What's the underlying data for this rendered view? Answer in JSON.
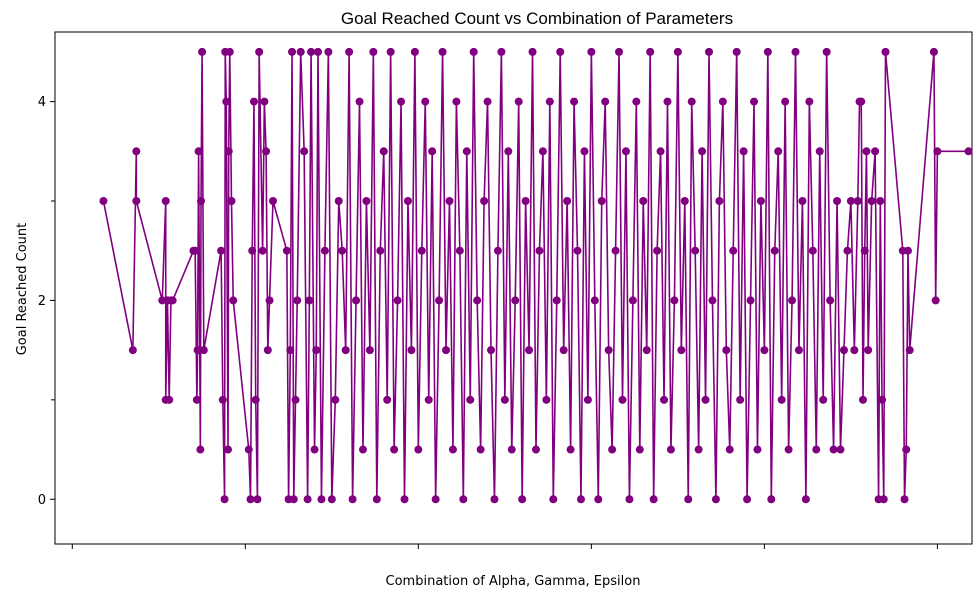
{
  "chart_data": {
    "type": "line",
    "title": "Goal Reached Count vs Combination of Parameters",
    "xlabel": "Combination of Alpha, Gamma, Epsilon",
    "ylabel": "Goal Reached Count",
    "ylim": [
      -0.45,
      4.7
    ],
    "xlim": [
      -0.5,
      26
    ],
    "yticks": [
      0,
      2,
      4
    ],
    "yminor_ticks": [
      1,
      3
    ],
    "xtick_positions": [
      0,
      5,
      10,
      15,
      20,
      25
    ],
    "grid": false,
    "legend": "none",
    "series": [
      {
        "color": "#800080",
        "x": [
          0.9,
          1.75,
          1.85,
          1.85,
          2.6,
          2.7,
          2.7,
          2.75,
          2.8,
          2.85,
          2.9,
          3.5,
          3.55,
          3.6,
          3.62,
          3.65,
          3.7,
          3.72,
          3.75,
          3.8,
          4.3,
          4.35,
          4.4,
          4.42,
          4.45,
          4.5,
          4.52,
          4.55,
          4.6,
          4.65,
          5.1,
          5.15,
          5.2,
          5.25,
          5.3,
          5.35,
          5.4,
          5.5,
          5.55,
          5.6,
          5.65,
          5.7,
          5.8,
          6.2,
          6.25,
          6.3,
          6.35,
          6.4,
          6.45,
          6.5,
          6.6,
          6.7,
          6.8,
          6.85,
          6.9,
          7.0,
          7.05,
          7.1,
          7.2,
          7.3,
          7.4,
          7.5,
          7.6,
          7.7,
          7.8,
          7.9,
          8.0,
          8.1,
          8.2,
          8.3,
          8.4,
          8.5,
          8.6,
          8.7,
          8.8,
          8.9,
          9.0,
          9.1,
          9.2,
          9.3,
          9.4,
          9.5,
          9.6,
          9.7,
          9.8,
          9.9,
          10.0,
          10.1,
          10.2,
          10.3,
          10.4,
          10.5,
          10.6,
          10.7,
          10.8,
          10.9,
          11.0,
          11.1,
          11.2,
          11.3,
          11.4,
          11.5,
          11.6,
          11.7,
          11.8,
          11.9,
          12.0,
          12.1,
          12.2,
          12.3,
          12.4,
          12.5,
          12.6,
          12.7,
          12.8,
          12.9,
          13.0,
          13.1,
          13.2,
          13.3,
          13.4,
          13.5,
          13.6,
          13.7,
          13.8,
          13.9,
          14.0,
          14.1,
          14.2,
          14.3,
          14.4,
          14.5,
          14.6,
          14.7,
          14.8,
          14.9,
          15.0,
          15.1,
          15.2,
          15.3,
          15.4,
          15.5,
          15.6,
          15.7,
          15.8,
          15.9,
          16.0,
          16.1,
          16.2,
          16.3,
          16.4,
          16.5,
          16.6,
          16.7,
          16.8,
          16.9,
          17.0,
          17.1,
          17.2,
          17.3,
          17.4,
          17.5,
          17.6,
          17.7,
          17.8,
          17.9,
          18.0,
          18.1,
          18.2,
          18.3,
          18.4,
          18.5,
          18.6,
          18.7,
          18.8,
          18.9,
          19.0,
          19.1,
          19.2,
          19.3,
          19.4,
          19.5,
          19.6,
          19.7,
          19.8,
          19.9,
          20.0,
          20.1,
          20.2,
          20.3,
          20.4,
          20.5,
          20.6,
          20.7,
          20.8,
          20.9,
          21.0,
          21.1,
          21.2,
          21.3,
          21.4,
          21.5,
          21.6,
          21.7,
          21.8,
          21.9,
          22.0,
          22.1,
          22.2,
          22.3,
          22.4,
          22.5,
          22.6,
          22.7,
          22.75,
          22.8,
          22.85,
          22.9,
          22.95,
          23.0,
          23.1,
          23.2,
          23.3,
          23.35,
          23.4,
          23.45,
          23.5,
          24.0,
          24.05,
          24.1,
          24.15,
          24.2,
          24.9,
          24.95,
          25.0,
          25.9
        ],
        "y": [
          3.0,
          1.5,
          3.5,
          3.0,
          2.0,
          3.0,
          1.0,
          2.0,
          1.0,
          2.0,
          2.0,
          2.5,
          2.5,
          1.0,
          1.5,
          3.5,
          0.5,
          3.0,
          4.5,
          1.5,
          2.5,
          1.0,
          0.0,
          4.5,
          4.0,
          0.5,
          3.5,
          4.5,
          3.0,
          2.0,
          0.5,
          0.0,
          2.5,
          4.0,
          1.0,
          0.0,
          4.5,
          2.5,
          4.0,
          3.5,
          1.5,
          2.0,
          3.0,
          2.5,
          0.0,
          1.5,
          4.5,
          0.0,
          1.0,
          2.0,
          4.5,
          3.5,
          0.0,
          2.0,
          4.5,
          0.5,
          1.5,
          4.5,
          0.0,
          2.5,
          4.5,
          0.0,
          1.0,
          3.0,
          2.5,
          1.5,
          4.5,
          0.0,
          2.0,
          4.0,
          0.5,
          3.0,
          1.5,
          4.5,
          0.0,
          2.5,
          3.5,
          1.0,
          4.5,
          0.5,
          2.0,
          4.0,
          0.0,
          3.0,
          1.5,
          4.5,
          0.5,
          2.5,
          4.0,
          1.0,
          3.5,
          0.0,
          2.0,
          4.5,
          1.5,
          3.0,
          0.5,
          4.0,
          2.5,
          0.0,
          3.5,
          1.0,
          4.5,
          2.0,
          0.5,
          3.0,
          4.0,
          1.5,
          0.0,
          2.5,
          4.5,
          1.0,
          3.5,
          0.5,
          2.0,
          4.0,
          0.0,
          3.0,
          1.5,
          4.5,
          0.5,
          2.5,
          3.5,
          1.0,
          4.0,
          0.0,
          2.0,
          4.5,
          1.5,
          3.0,
          0.5,
          4.0,
          2.5,
          0.0,
          3.5,
          1.0,
          4.5,
          2.0,
          0.0,
          3.0,
          4.0,
          1.5,
          0.5,
          2.5,
          4.5,
          1.0,
          3.5,
          0.0,
          2.0,
          4.0,
          0.5,
          3.0,
          1.5,
          4.5,
          0.0,
          2.5,
          3.5,
          1.0,
          4.0,
          0.5,
          2.0,
          4.5,
          1.5,
          3.0,
          0.0,
          4.0,
          2.5,
          0.5,
          3.5,
          1.0,
          4.5,
          2.0,
          0.0,
          3.0,
          4.0,
          1.5,
          0.5,
          2.5,
          4.5,
          1.0,
          3.5,
          0.0,
          2.0,
          4.0,
          0.5,
          3.0,
          1.5,
          4.5,
          0.0,
          2.5,
          3.5,
          1.0,
          4.0,
          0.5,
          2.0,
          4.5,
          1.5,
          3.0,
          0.0,
          4.0,
          2.5,
          0.5,
          3.5,
          1.0,
          4.5,
          2.0,
          0.5,
          3.0,
          0.5,
          1.5,
          2.5,
          3.0,
          1.5,
          3.0,
          4.0,
          4.0,
          1.0,
          2.5,
          3.5,
          1.5,
          3.0,
          3.5,
          0.0,
          3.0,
          1.0,
          0.0,
          4.5,
          2.5,
          0.0,
          0.5,
          2.5,
          1.5,
          4.5,
          2.0,
          3.5,
          3.5
        ]
      }
    ]
  }
}
